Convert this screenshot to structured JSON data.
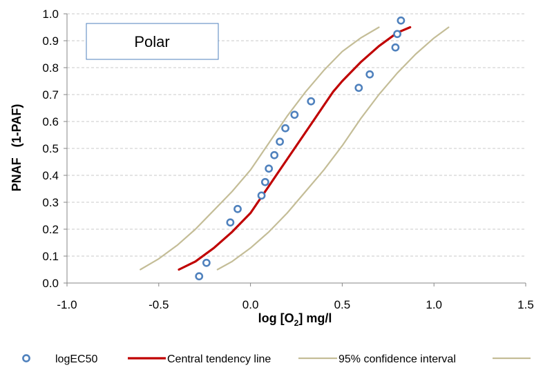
{
  "chart_data": {
    "type": "scatter",
    "title": "",
    "xlabel": "log [O",
    "xlabel_sub": "2",
    "xlabel_suffix": "] mg/l",
    "ylabel": "PNAF   (1-PAF)",
    "xlim": [
      -1.0,
      1.5
    ],
    "ylim": [
      0.0,
      1.0
    ],
    "x_ticks": [
      -1.0,
      -0.5,
      0.0,
      0.5,
      1.0,
      1.5
    ],
    "x_tick_labels": [
      "-1.0",
      "-0.5",
      "0.0",
      "0.5",
      "1.0",
      "1.5"
    ],
    "y_ticks": [
      0.0,
      0.1,
      0.2,
      0.3,
      0.4,
      0.5,
      0.6,
      0.7,
      0.8,
      0.9,
      1.0
    ],
    "y_tick_labels": [
      "0.0",
      "0.1",
      "0.2",
      "0.3",
      "0.4",
      "0.5",
      "0.6",
      "0.7",
      "0.8",
      "0.9",
      "1.0"
    ],
    "grid": "horizontal dashed",
    "annotation": "Polar",
    "legend_position": "bottom",
    "colors": {
      "points_stroke": "#4f81bd",
      "central": "#c00000",
      "confidence": "#c4bd97",
      "grid": "#c8c8c8"
    },
    "series": [
      {
        "name": "logEC50",
        "kind": "points",
        "x": [
          -0.28,
          -0.24,
          -0.11,
          -0.07,
          0.06,
          0.08,
          0.1,
          0.13,
          0.16,
          0.19,
          0.24,
          0.33,
          0.59,
          0.65,
          0.79,
          0.8,
          0.82
        ],
        "y": [
          0.025,
          0.075,
          0.225,
          0.275,
          0.325,
          0.375,
          0.425,
          0.475,
          0.525,
          0.575,
          0.625,
          0.675,
          0.725,
          0.775,
          0.875,
          0.925,
          0.975
        ]
      },
      {
        "name": "Central tendency line",
        "kind": "line",
        "x": [
          -0.39,
          -0.3,
          -0.2,
          -0.1,
          0.0,
          0.05,
          0.1,
          0.15,
          0.2,
          0.25,
          0.3,
          0.35,
          0.4,
          0.45,
          0.5,
          0.6,
          0.7,
          0.8,
          0.87
        ],
        "y": [
          0.05,
          0.08,
          0.13,
          0.19,
          0.26,
          0.31,
          0.36,
          0.41,
          0.46,
          0.51,
          0.56,
          0.61,
          0.66,
          0.71,
          0.75,
          0.82,
          0.88,
          0.93,
          0.95
        ]
      },
      {
        "name": "95% confidence interval",
        "kind": "line",
        "x": [
          -0.6,
          -0.5,
          -0.4,
          -0.3,
          -0.2,
          -0.1,
          0.0,
          0.05,
          0.1,
          0.15,
          0.2,
          0.3,
          0.4,
          0.5,
          0.6,
          0.7
        ],
        "y": [
          0.05,
          0.09,
          0.14,
          0.2,
          0.27,
          0.34,
          0.42,
          0.47,
          0.52,
          0.57,
          0.62,
          0.71,
          0.79,
          0.86,
          0.91,
          0.95
        ]
      },
      {
        "name": "",
        "kind": "line",
        "legend_swatch_only": true,
        "x": [
          -0.18,
          -0.1,
          0.0,
          0.1,
          0.2,
          0.3,
          0.4,
          0.5,
          0.55,
          0.6,
          0.7,
          0.8,
          0.9,
          1.0,
          1.08
        ],
        "y": [
          0.05,
          0.08,
          0.13,
          0.19,
          0.26,
          0.34,
          0.42,
          0.51,
          0.56,
          0.61,
          0.7,
          0.78,
          0.85,
          0.91,
          0.95
        ]
      }
    ]
  }
}
